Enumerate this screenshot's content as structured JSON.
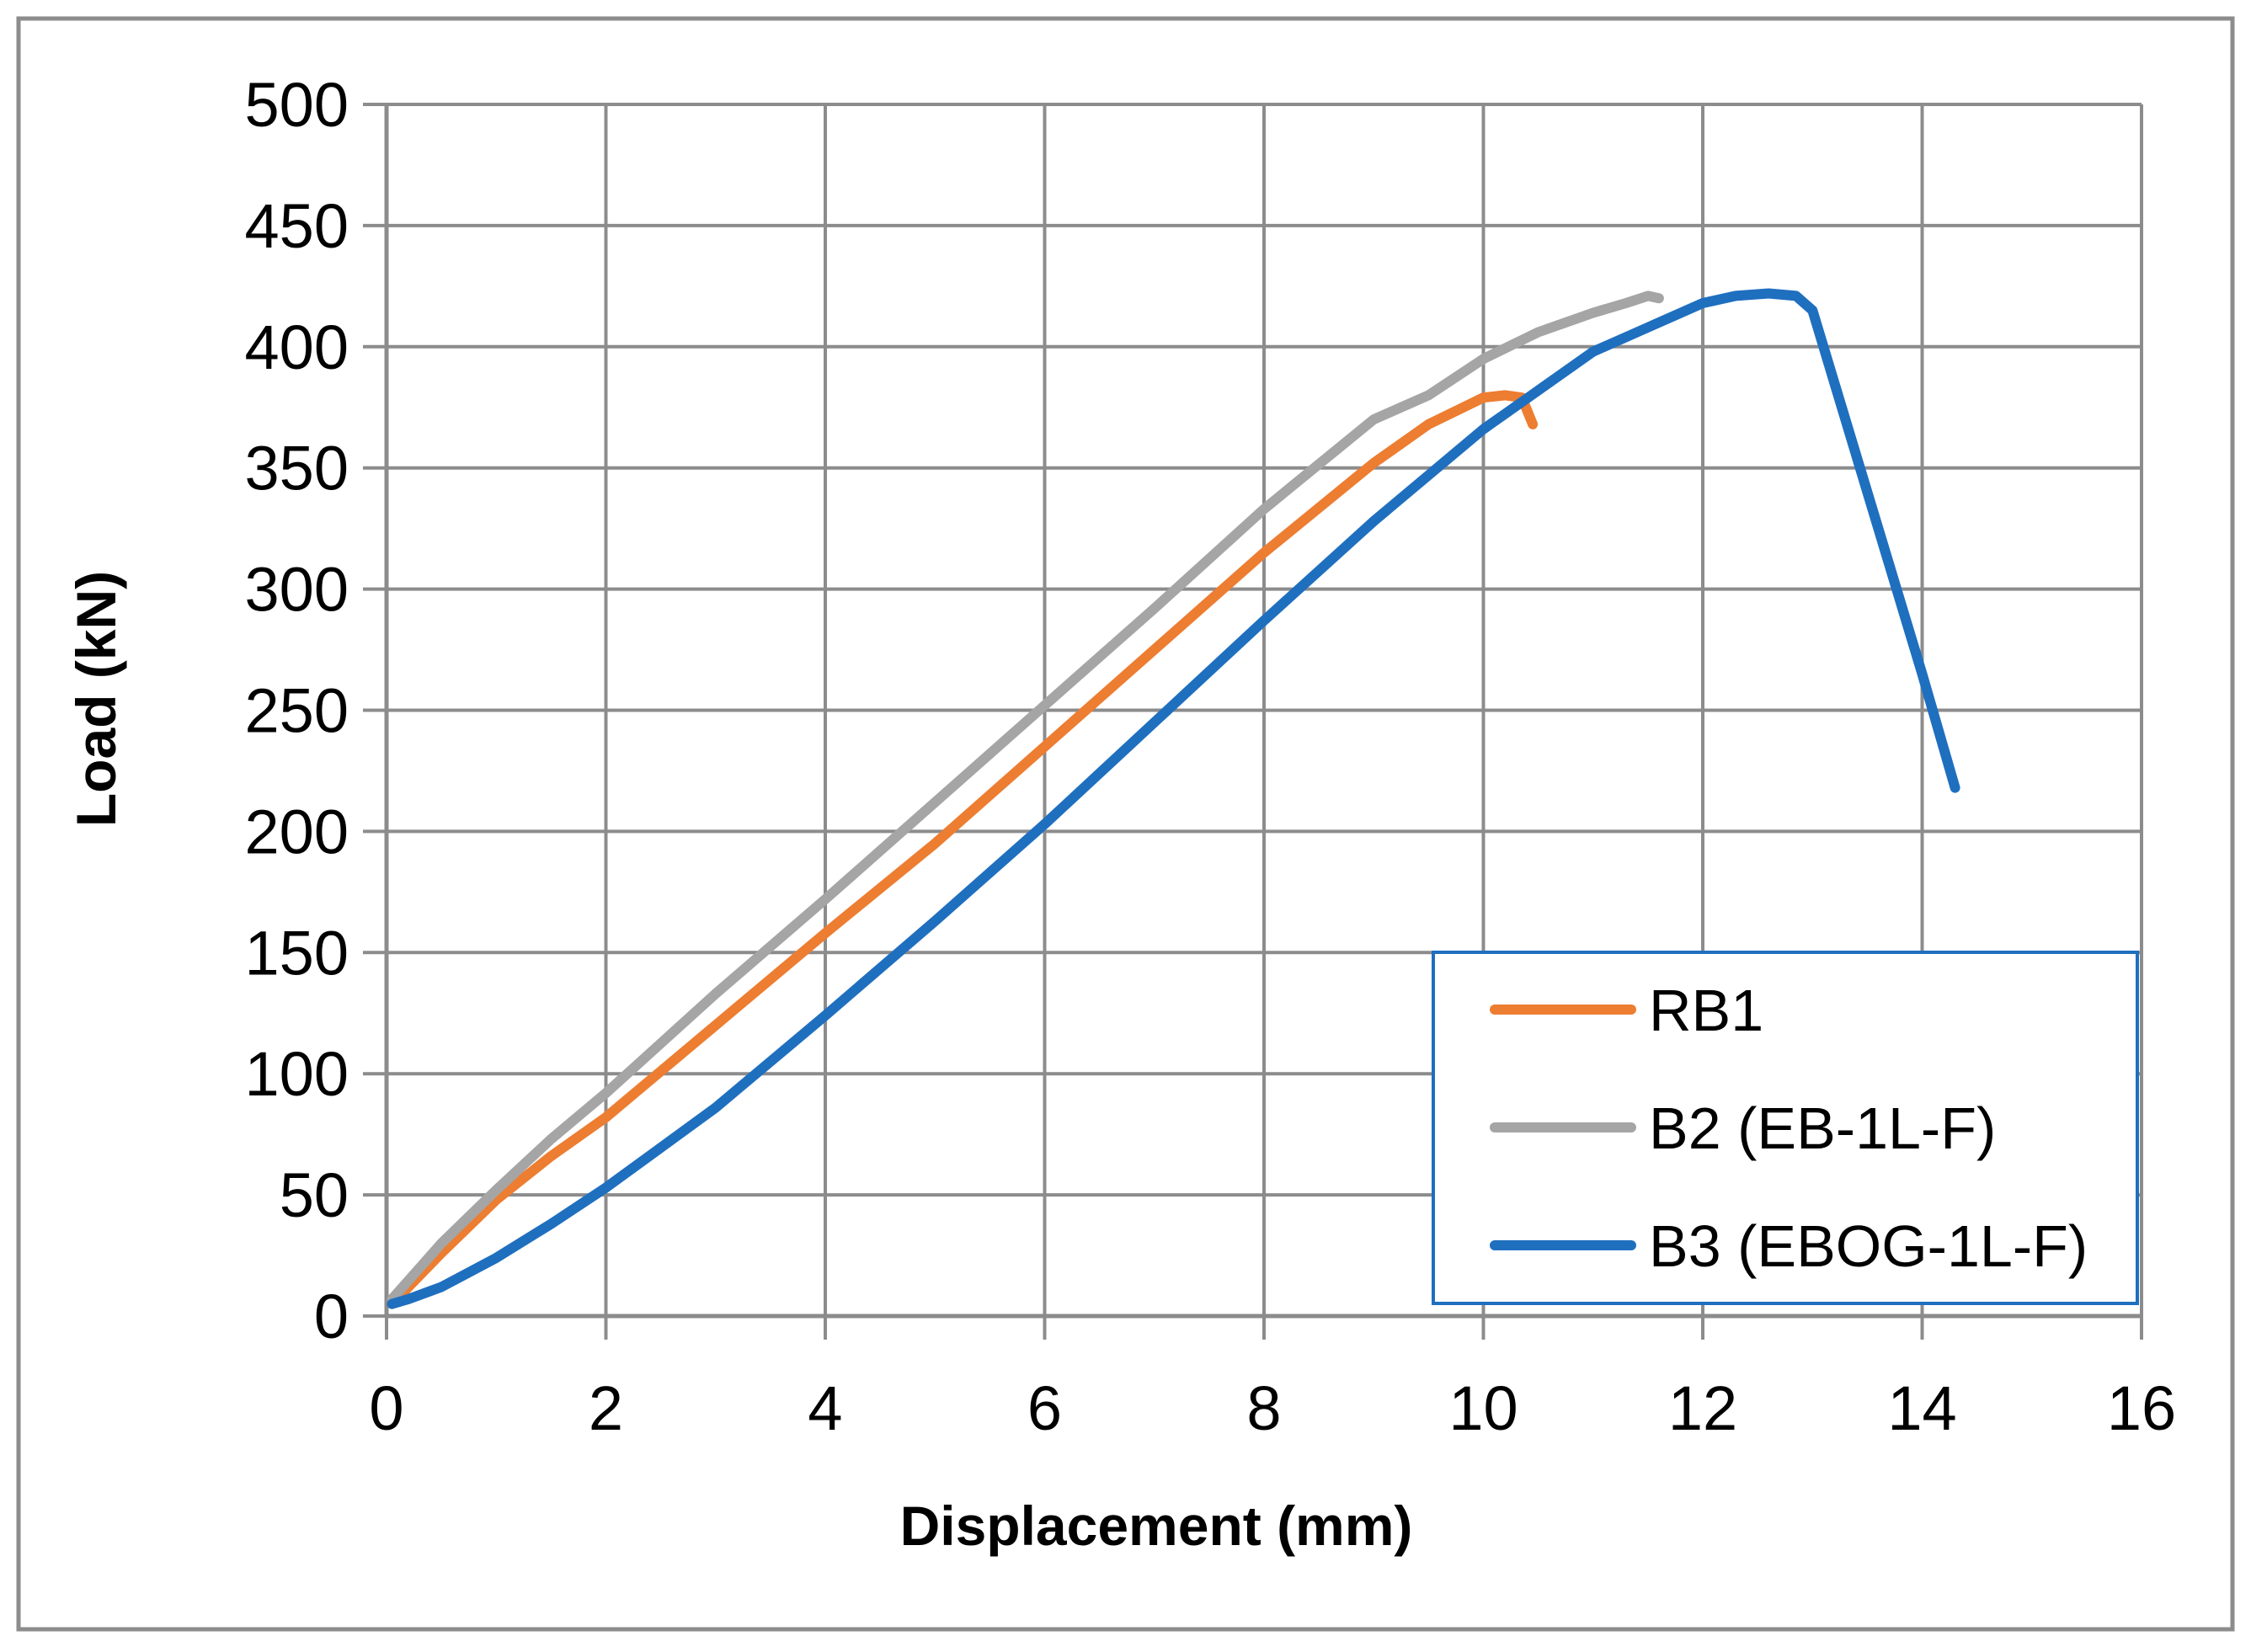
{
  "chart_data": {
    "type": "line",
    "title": "",
    "xlabel": "Displacement (mm)",
    "ylabel": "Load (kN)",
    "xlim": [
      0,
      16
    ],
    "ylim": [
      0,
      500
    ],
    "xticks": [
      0,
      2,
      4,
      6,
      8,
      10,
      12,
      14,
      16
    ],
    "yticks": [
      0,
      50,
      100,
      150,
      200,
      250,
      300,
      350,
      400,
      450,
      500
    ],
    "grid": true,
    "legend_position": "bottom-right",
    "series": [
      {
        "name": "RB1",
        "color": "#ED7D31",
        "x": [
          0.05,
          0.5,
          1,
          1.5,
          2,
          3,
          4,
          5,
          6,
          7,
          8,
          9,
          9.5,
          10,
          10.2,
          10.35,
          10.45
        ],
        "y": [
          5,
          26,
          48,
          66,
          82,
          120,
          158,
          195,
          235,
          275,
          315,
          352,
          368,
          379,
          380,
          379,
          368
        ]
      },
      {
        "name": "B2 (EB-1L-F)",
        "color": "#A5A5A5",
        "x": [
          0.05,
          0.5,
          1,
          1.5,
          2,
          3,
          4,
          5,
          6,
          7,
          8,
          9,
          9.2,
          9.5,
          10,
          10.5,
          11,
          11.3,
          11.5,
          11.6
        ],
        "y": [
          7,
          30,
          52,
          73,
          92,
          133,
          172,
          212,
          252,
          292,
          333,
          370,
          374,
          380,
          395,
          406,
          414,
          418,
          421,
          420
        ]
      },
      {
        "name": "B3 (EBOG-1L-F)",
        "color": "#1F6FBF",
        "x": [
          0.05,
          0.2,
          0.5,
          1,
          1.5,
          2,
          3,
          4,
          5,
          6,
          7,
          8,
          9,
          10,
          11,
          11.5,
          12,
          12.3,
          12.6,
          12.85,
          13,
          13.5,
          14,
          14.3
        ],
        "y": [
          5,
          7,
          12,
          24,
          38,
          53,
          86,
          124,
          163,
          203,
          245,
          287,
          328,
          366,
          398,
          408,
          418,
          421,
          422,
          421,
          415,
          340,
          265,
          218
        ]
      }
    ]
  }
}
